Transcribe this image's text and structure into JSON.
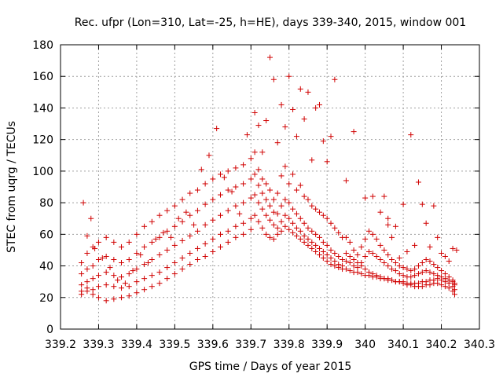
{
  "chart_data": {
    "type": "scatter",
    "title": "Rec. ufpr (Lon=310, Lat=-25, h=HE), days 339-340, 2015, window 001",
    "xlabel": "GPS time / Days of year 2015",
    "ylabel": "STEC from uqrg / TECUs",
    "xlim": [
      339.2,
      340.3
    ],
    "ylim": [
      0,
      180
    ],
    "xticks": [
      "339.2",
      "339.3",
      "339.4",
      "339.5",
      "339.6",
      "339.7",
      "339.8",
      "339.9",
      "340",
      "340.1",
      "340.2",
      "340.3"
    ],
    "yticks": [
      "0",
      "20",
      "40",
      "60",
      "80",
      "100",
      "120",
      "140",
      "160",
      "180"
    ],
    "grid": true,
    "marker": "plus",
    "color": "#d00000",
    "points": [
      [
        339.255,
        42
      ],
      [
        339.27,
        48
      ],
      [
        339.285,
        52
      ],
      [
        339.3,
        55
      ],
      [
        339.32,
        58
      ],
      [
        339.34,
        55
      ],
      [
        339.36,
        52
      ],
      [
        339.38,
        55
      ],
      [
        339.4,
        60
      ],
      [
        339.42,
        65
      ],
      [
        339.44,
        68
      ],
      [
        339.46,
        72
      ],
      [
        339.48,
        75
      ],
      [
        339.5,
        78
      ],
      [
        339.52,
        82
      ],
      [
        339.54,
        86
      ],
      [
        339.56,
        88
      ],
      [
        339.58,
        92
      ],
      [
        339.6,
        95
      ],
      [
        339.62,
        98
      ],
      [
        339.64,
        100
      ],
      [
        339.66,
        102
      ],
      [
        339.68,
        104
      ],
      [
        339.7,
        108
      ],
      [
        339.255,
        35
      ],
      [
        339.27,
        38
      ],
      [
        339.285,
        40
      ],
      [
        339.3,
        44
      ],
      [
        339.32,
        46
      ],
      [
        339.34,
        44
      ],
      [
        339.36,
        42
      ],
      [
        339.38,
        44
      ],
      [
        339.4,
        48
      ],
      [
        339.42,
        52
      ],
      [
        339.44,
        55
      ],
      [
        339.46,
        58
      ],
      [
        339.48,
        62
      ],
      [
        339.5,
        65
      ],
      [
        339.52,
        68
      ],
      [
        339.54,
        72
      ],
      [
        339.56,
        75
      ],
      [
        339.58,
        79
      ],
      [
        339.6,
        82
      ],
      [
        339.62,
        85
      ],
      [
        339.64,
        88
      ],
      [
        339.66,
        90
      ],
      [
        339.68,
        92
      ],
      [
        339.7,
        95
      ],
      [
        339.255,
        28
      ],
      [
        339.27,
        30
      ],
      [
        339.285,
        32
      ],
      [
        339.3,
        34
      ],
      [
        339.32,
        36
      ],
      [
        339.34,
        34
      ],
      [
        339.36,
        33
      ],
      [
        339.38,
        35
      ],
      [
        339.4,
        38
      ],
      [
        339.42,
        41
      ],
      [
        339.44,
        44
      ],
      [
        339.46,
        47
      ],
      [
        339.48,
        50
      ],
      [
        339.5,
        53
      ],
      [
        339.52,
        56
      ],
      [
        339.54,
        59
      ],
      [
        339.56,
        62
      ],
      [
        339.58,
        66
      ],
      [
        339.6,
        69
      ],
      [
        339.62,
        72
      ],
      [
        339.64,
        75
      ],
      [
        339.66,
        78
      ],
      [
        339.68,
        80
      ],
      [
        339.7,
        83
      ],
      [
        339.255,
        22
      ],
      [
        339.27,
        24
      ],
      [
        339.285,
        25
      ],
      [
        339.3,
        27
      ],
      [
        339.32,
        28
      ],
      [
        339.34,
        27
      ],
      [
        339.36,
        26
      ],
      [
        339.38,
        27
      ],
      [
        339.4,
        30
      ],
      [
        339.42,
        32
      ],
      [
        339.44,
        34
      ],
      [
        339.46,
        36
      ],
      [
        339.48,
        39
      ],
      [
        339.5,
        42
      ],
      [
        339.52,
        45
      ],
      [
        339.54,
        48
      ],
      [
        339.56,
        51
      ],
      [
        339.58,
        54
      ],
      [
        339.6,
        57
      ],
      [
        339.62,
        60
      ],
      [
        339.64,
        62
      ],
      [
        339.66,
        65
      ],
      [
        339.68,
        67
      ],
      [
        339.7,
        70
      ],
      [
        339.255,
        24
      ],
      [
        339.27,
        26
      ],
      [
        339.285,
        22
      ],
      [
        339.3,
        20
      ],
      [
        339.32,
        18
      ],
      [
        339.34,
        19
      ],
      [
        339.36,
        20
      ],
      [
        339.38,
        21
      ],
      [
        339.4,
        23
      ],
      [
        339.42,
        25
      ],
      [
        339.44,
        27
      ],
      [
        339.46,
        29
      ],
      [
        339.48,
        32
      ],
      [
        339.5,
        35
      ],
      [
        339.52,
        38
      ],
      [
        339.54,
        41
      ],
      [
        339.56,
        44
      ],
      [
        339.58,
        46
      ],
      [
        339.6,
        49
      ],
      [
        339.62,
        52
      ],
      [
        339.64,
        55
      ],
      [
        339.66,
        58
      ],
      [
        339.68,
        60
      ],
      [
        339.7,
        63
      ],
      [
        339.26,
        80
      ],
      [
        339.27,
        59
      ],
      [
        339.28,
        70
      ],
      [
        339.29,
        51
      ],
      [
        339.31,
        45
      ],
      [
        339.33,
        39
      ],
      [
        339.35,
        31
      ],
      [
        339.37,
        29
      ],
      [
        339.39,
        37
      ],
      [
        339.41,
        47
      ],
      [
        339.43,
        42
      ],
      [
        339.45,
        57
      ],
      [
        339.47,
        61
      ],
      [
        339.49,
        58
      ],
      [
        339.51,
        70
      ],
      [
        339.53,
        74
      ],
      [
        339.55,
        66
      ],
      [
        339.57,
        101
      ],
      [
        339.59,
        110
      ],
      [
        339.61,
        127
      ],
      [
        339.63,
        96
      ],
      [
        339.65,
        87
      ],
      [
        339.67,
        73
      ],
      [
        339.69,
        123
      ],
      [
        339.71,
        137
      ],
      [
        339.72,
        129
      ],
      [
        339.73,
        112
      ],
      [
        339.74,
        132
      ],
      [
        339.75,
        172
      ],
      [
        339.76,
        158
      ],
      [
        339.77,
        118
      ],
      [
        339.78,
        142
      ],
      [
        339.79,
        128
      ],
      [
        339.8,
        160
      ],
      [
        339.81,
        139
      ],
      [
        339.82,
        122
      ],
      [
        339.83,
        152
      ],
      [
        339.84,
        133
      ],
      [
        339.85,
        150
      ],
      [
        339.86,
        107
      ],
      [
        339.87,
        140
      ],
      [
        339.88,
        142
      ],
      [
        339.89,
        119
      ],
      [
        339.9,
        106
      ],
      [
        339.91,
        122
      ],
      [
        339.92,
        158
      ],
      [
        339.95,
        94
      ],
      [
        339.97,
        125
      ],
      [
        339.71,
        112
      ],
      [
        339.72,
        101
      ],
      [
        339.73,
        95
      ],
      [
        339.74,
        92
      ],
      [
        339.75,
        88
      ],
      [
        339.76,
        82
      ],
      [
        339.77,
        86
      ],
      [
        339.78,
        97
      ],
      [
        339.79,
        103
      ],
      [
        339.8,
        92
      ],
      [
        339.81,
        98
      ],
      [
        339.82,
        88
      ],
      [
        339.83,
        91
      ],
      [
        339.84,
        84
      ],
      [
        339.85,
        82
      ],
      [
        339.86,
        78
      ],
      [
        339.87,
        76
      ],
      [
        339.88,
        74
      ],
      [
        339.89,
        72
      ],
      [
        339.9,
        70
      ],
      [
        339.91,
        67
      ],
      [
        339.92,
        64
      ],
      [
        339.93,
        61
      ],
      [
        339.94,
        58
      ],
      [
        339.71,
        98
      ],
      [
        339.72,
        91
      ],
      [
        339.73,
        86
      ],
      [
        339.74,
        82
      ],
      [
        339.75,
        78
      ],
      [
        339.76,
        74
      ],
      [
        339.77,
        73
      ],
      [
        339.78,
        78
      ],
      [
        339.79,
        82
      ],
      [
        339.8,
        80
      ],
      [
        339.81,
        76
      ],
      [
        339.82,
        73
      ],
      [
        339.83,
        70
      ],
      [
        339.84,
        67
      ],
      [
        339.85,
        64
      ],
      [
        339.86,
        62
      ],
      [
        339.87,
        60
      ],
      [
        339.88,
        58
      ],
      [
        339.89,
        55
      ],
      [
        339.9,
        53
      ],
      [
        339.91,
        50
      ],
      [
        339.92,
        48
      ],
      [
        339.93,
        46
      ],
      [
        339.94,
        44
      ],
      [
        339.71,
        85
      ],
      [
        339.72,
        80
      ],
      [
        339.73,
        76
      ],
      [
        339.74,
        72
      ],
      [
        339.75,
        69
      ],
      [
        339.76,
        66
      ],
      [
        339.77,
        64
      ],
      [
        339.78,
        68
      ],
      [
        339.79,
        72
      ],
      [
        339.8,
        70
      ],
      [
        339.81,
        67
      ],
      [
        339.82,
        64
      ],
      [
        339.83,
        62
      ],
      [
        339.84,
        59
      ],
      [
        339.85,
        57
      ],
      [
        339.86,
        55
      ],
      [
        339.87,
        53
      ],
      [
        339.88,
        51
      ],
      [
        339.89,
        49
      ],
      [
        339.9,
        47
      ],
      [
        339.91,
        45
      ],
      [
        339.92,
        43
      ],
      [
        339.93,
        41
      ],
      [
        339.94,
        40
      ],
      [
        339.71,
        72
      ],
      [
        339.72,
        68
      ],
      [
        339.73,
        64
      ],
      [
        339.74,
        60
      ],
      [
        339.75,
        58
      ],
      [
        339.76,
        57
      ],
      [
        339.77,
        60
      ],
      [
        339.78,
        62
      ],
      [
        339.79,
        65
      ],
      [
        339.8,
        63
      ],
      [
        339.81,
        61
      ],
      [
        339.82,
        59
      ],
      [
        339.83,
        57
      ],
      [
        339.84,
        55
      ],
      [
        339.85,
        53
      ],
      [
        339.86,
        51
      ],
      [
        339.87,
        49
      ],
      [
        339.88,
        47
      ],
      [
        339.89,
        45
      ],
      [
        339.9,
        43
      ],
      [
        339.91,
        41
      ],
      [
        339.92,
        40
      ],
      [
        339.93,
        39
      ],
      [
        339.94,
        38
      ],
      [
        339.95,
        48
      ],
      [
        339.96,
        46
      ],
      [
        339.97,
        44
      ],
      [
        339.98,
        42
      ],
      [
        339.99,
        40
      ],
      [
        340.0,
        38
      ],
      [
        340.01,
        36
      ],
      [
        340.02,
        35
      ],
      [
        340.03,
        34
      ],
      [
        340.04,
        33
      ],
      [
        340.05,
        32
      ],
      [
        340.06,
        32
      ],
      [
        340.07,
        31
      ],
      [
        340.08,
        30
      ],
      [
        340.09,
        30
      ],
      [
        340.1,
        29
      ],
      [
        340.11,
        28
      ],
      [
        340.12,
        28
      ],
      [
        340.13,
        27
      ],
      [
        340.14,
        27
      ],
      [
        340.15,
        27
      ],
      [
        340.16,
        28
      ],
      [
        340.17,
        28
      ],
      [
        340.18,
        29
      ],
      [
        340.19,
        29
      ],
      [
        340.2,
        28
      ],
      [
        340.21,
        27
      ],
      [
        340.22,
        26
      ],
      [
        340.23,
        24
      ],
      [
        340.235,
        22
      ],
      [
        339.95,
        38
      ],
      [
        339.96,
        37
      ],
      [
        339.97,
        36
      ],
      [
        339.98,
        36
      ],
      [
        339.99,
        35
      ],
      [
        340.0,
        34
      ],
      [
        340.01,
        34
      ],
      [
        340.02,
        33
      ],
      [
        340.03,
        33
      ],
      [
        340.04,
        32
      ],
      [
        340.05,
        32
      ],
      [
        340.06,
        31
      ],
      [
        340.07,
        31
      ],
      [
        340.08,
        30
      ],
      [
        340.09,
        30
      ],
      [
        340.1,
        30
      ],
      [
        340.11,
        29
      ],
      [
        340.12,
        29
      ],
      [
        340.13,
        29
      ],
      [
        340.14,
        29
      ],
      [
        340.15,
        30
      ],
      [
        340.16,
        30
      ],
      [
        340.17,
        31
      ],
      [
        340.18,
        31
      ],
      [
        340.19,
        32
      ],
      [
        340.2,
        31
      ],
      [
        340.21,
        30
      ],
      [
        340.22,
        29
      ],
      [
        340.23,
        27
      ],
      [
        340.235,
        25
      ],
      [
        339.95,
        58
      ],
      [
        339.96,
        55
      ],
      [
        339.97,
        50
      ],
      [
        339.98,
        47
      ],
      [
        339.99,
        52
      ],
      [
        340.0,
        57
      ],
      [
        340.01,
        62
      ],
      [
        340.02,
        60
      ],
      [
        340.03,
        57
      ],
      [
        340.04,
        53
      ],
      [
        340.05,
        50
      ],
      [
        340.06,
        47
      ],
      [
        340.07,
        44
      ],
      [
        340.08,
        42
      ],
      [
        340.09,
        40
      ],
      [
        340.1,
        39
      ],
      [
        340.11,
        38
      ],
      [
        340.12,
        37
      ],
      [
        340.13,
        38
      ],
      [
        340.14,
        40
      ],
      [
        340.15,
        42
      ],
      [
        340.16,
        44
      ],
      [
        340.17,
        43
      ],
      [
        340.18,
        41
      ],
      [
        340.19,
        39
      ],
      [
        340.2,
        37
      ],
      [
        340.21,
        35
      ],
      [
        340.22,
        33
      ],
      [
        340.23,
        31
      ],
      [
        340.235,
        29
      ],
      [
        339.95,
        43
      ],
      [
        339.96,
        42
      ],
      [
        339.97,
        40
      ],
      [
        339.98,
        39
      ],
      [
        339.99,
        42
      ],
      [
        340.0,
        46
      ],
      [
        340.01,
        49
      ],
      [
        340.02,
        48
      ],
      [
        340.03,
        46
      ],
      [
        340.04,
        44
      ],
      [
        340.05,
        42
      ],
      [
        340.06,
        40
      ],
      [
        340.07,
        38
      ],
      [
        340.08,
        37
      ],
      [
        340.09,
        35
      ],
      [
        340.1,
        34
      ],
      [
        340.11,
        33
      ],
      [
        340.12,
        33
      ],
      [
        340.13,
        34
      ],
      [
        340.14,
        35
      ],
      [
        340.15,
        36
      ],
      [
        340.16,
        37
      ],
      [
        340.17,
        36
      ],
      [
        340.18,
        35
      ],
      [
        340.19,
        34
      ],
      [
        340.2,
        33
      ],
      [
        340.21,
        32
      ],
      [
        340.22,
        31
      ],
      [
        340.23,
        30
      ],
      [
        340.235,
        28
      ],
      [
        340.0,
        83
      ],
      [
        340.02,
        84
      ],
      [
        340.04,
        74
      ],
      [
        340.05,
        84
      ],
      [
        340.06,
        70
      ],
      [
        340.08,
        65
      ],
      [
        340.1,
        79
      ],
      [
        340.12,
        123
      ],
      [
        340.14,
        93
      ],
      [
        340.15,
        79
      ],
      [
        340.16,
        67
      ],
      [
        340.18,
        78
      ],
      [
        340.19,
        58
      ],
      [
        340.2,
        48
      ],
      [
        340.21,
        46
      ],
      [
        340.22,
        43
      ],
      [
        340.23,
        51
      ],
      [
        340.24,
        50
      ],
      [
        340.06,
        66
      ],
      [
        340.07,
        58
      ],
      [
        340.09,
        45
      ],
      [
        340.13,
        53
      ],
      [
        340.17,
        52
      ],
      [
        340.11,
        49
      ]
    ]
  }
}
